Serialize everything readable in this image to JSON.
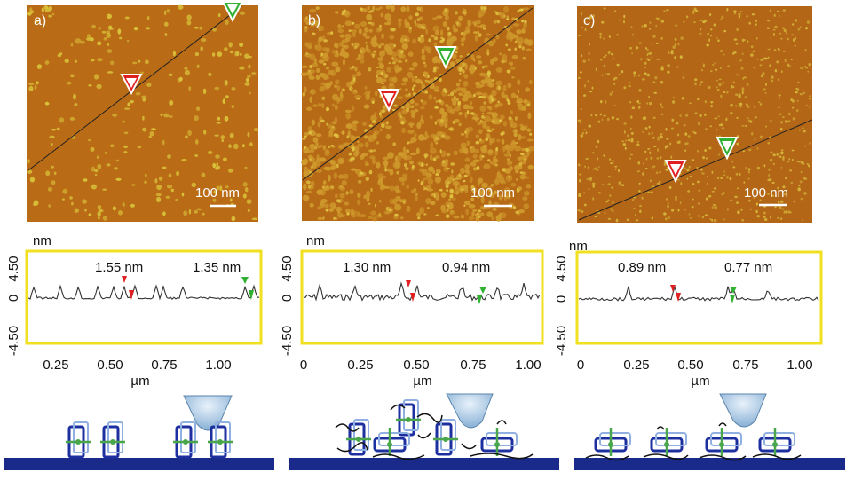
{
  "panels": [
    {
      "label": "a)",
      "scale_bar": "100 nm",
      "profile": {
        "y_unit": "nm",
        "y_ticks": [
          "4.50",
          "0",
          "-4.50"
        ],
        "x_ticks": [
          "0.25",
          "0.50",
          "0.75",
          "1.00"
        ],
        "x_label": "µm",
        "height_label_1": "1.55 nm",
        "height_label_2": "1.35 nm"
      }
    },
    {
      "label": "b)",
      "scale_bar": "100 nm",
      "profile": {
        "y_unit": "nm",
        "y_ticks": [
          "4.50",
          "0",
          "-4.50"
        ],
        "x_ticks": [
          "0",
          "0.25",
          "0.50",
          "0.75",
          "1.00"
        ],
        "x_label": "µm",
        "height_label_1": "1.30 nm",
        "height_label_2": "0.94 nm"
      }
    },
    {
      "label": "c)",
      "scale_bar": "100 nm",
      "profile": {
        "y_unit": "nm",
        "y_ticks": [
          "4.50",
          "0",
          "-4.50"
        ],
        "x_ticks": [
          "0",
          "0.25",
          "0.50",
          "0.75",
          "1.00"
        ],
        "x_label": "µm",
        "height_label_1": "0.89 nm",
        "height_label_2": "0.77 nm"
      }
    }
  ],
  "colors": {
    "afm_base": "#b86a14",
    "afm_spot": "#d8c238",
    "frame": "#f0e020",
    "marker_red": "#e02020",
    "marker_green": "#30b030",
    "substrate": "#1a2a8a"
  }
}
